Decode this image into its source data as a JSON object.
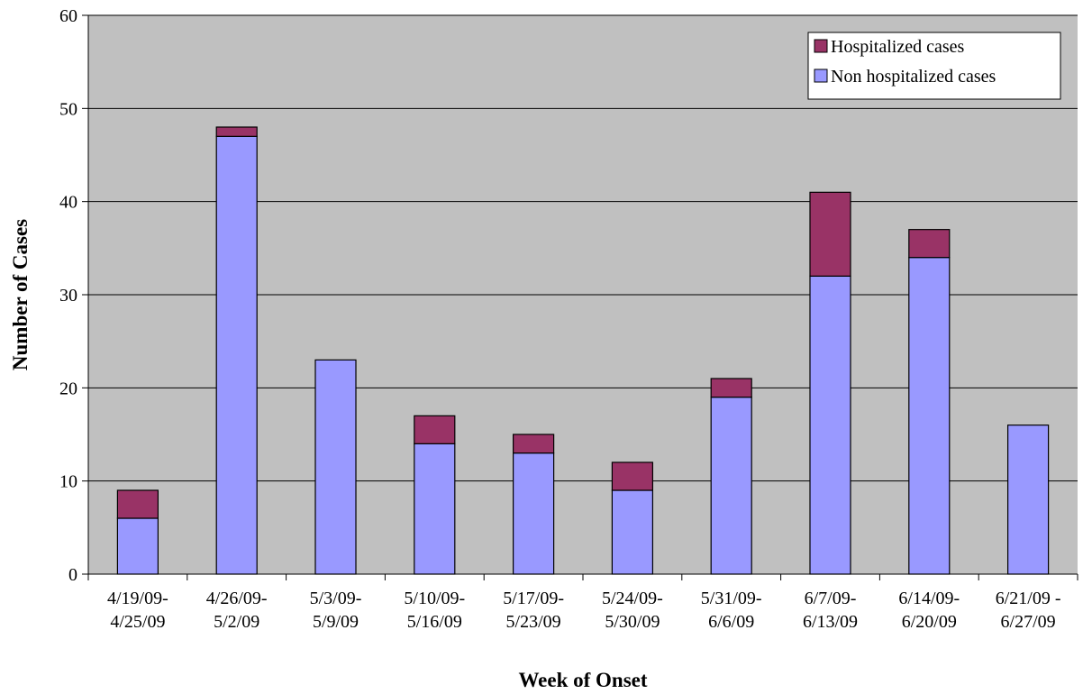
{
  "chart_data": {
    "type": "bar",
    "stacked": true,
    "title": "",
    "xlabel": "Week of Onset",
    "ylabel": "Number of Cases",
    "ylim": [
      0,
      60
    ],
    "yticks": [
      0,
      10,
      20,
      30,
      40,
      50,
      60
    ],
    "grid": true,
    "legend_position": "top-right",
    "categories": [
      [
        "4/19/09-",
        "4/25/09"
      ],
      [
        "4/26/09-",
        "5/2/09"
      ],
      [
        "5/3/09-",
        "5/9/09"
      ],
      [
        "5/10/09-",
        "5/16/09"
      ],
      [
        "5/17/09-",
        "5/23/09"
      ],
      [
        "5/24/09-",
        "5/30/09"
      ],
      [
        "5/31/09-",
        "6/6/09"
      ],
      [
        "6/7/09-",
        "6/13/09"
      ],
      [
        "6/14/09-",
        "6/20/09"
      ],
      [
        "6/21/09 -",
        "6/27/09"
      ]
    ],
    "series": [
      {
        "name": "Non hospitalized cases",
        "color": "#9999ff",
        "values": [
          6,
          47,
          23,
          14,
          13,
          9,
          19,
          32,
          34,
          16
        ]
      },
      {
        "name": "Hospitalized cases",
        "color": "#993366",
        "values": [
          3,
          1,
          0,
          3,
          2,
          3,
          2,
          9,
          3,
          0
        ]
      }
    ],
    "legend_order": [
      1,
      0
    ],
    "plot_background": "#c0c0c0"
  }
}
